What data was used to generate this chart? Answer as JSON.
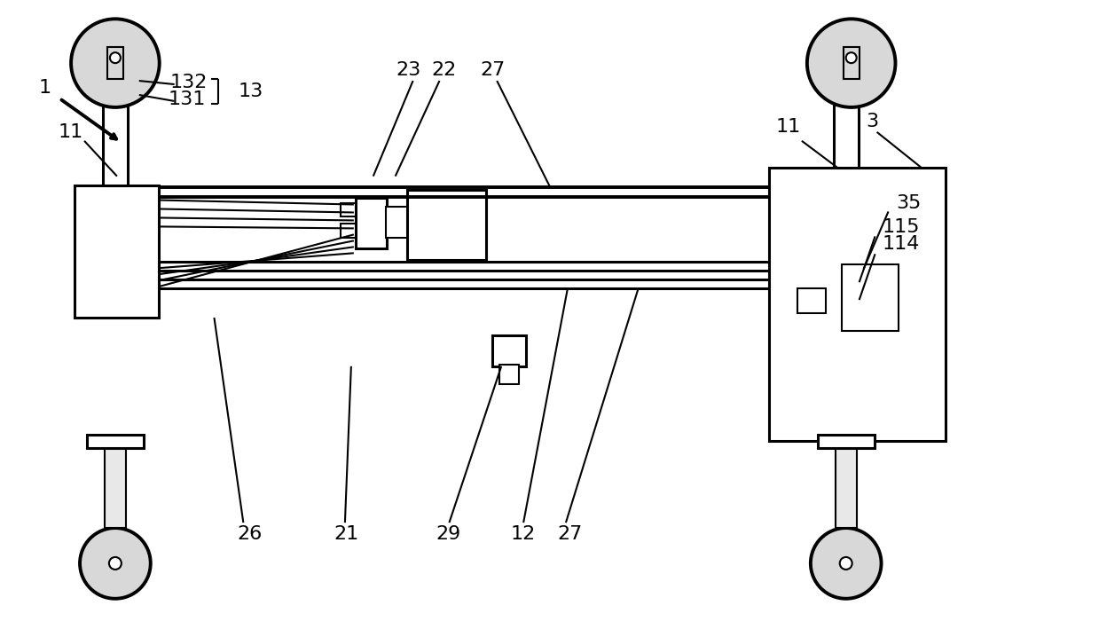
{
  "bg_color": "#ffffff",
  "line_color": "#000000",
  "lw": 2.2,
  "lw_thin": 1.5,
  "lw_thick": 2.8,
  "fig_width": 12.39,
  "fig_height": 7.18
}
